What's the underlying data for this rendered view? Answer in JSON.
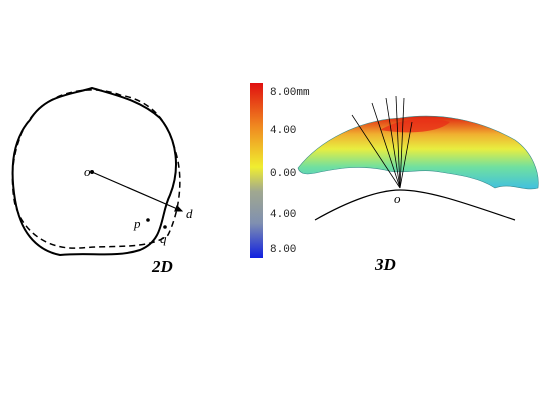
{
  "panel_2d": {
    "caption": "2D",
    "center_label": "o",
    "point_p": "p",
    "point_q": "q",
    "direction": "d"
  },
  "panel_3d": {
    "caption": "3D",
    "origin_label": "o",
    "colorbar": {
      "labels": [
        "8.00mm",
        "4.00",
        "0.00",
        "4.00",
        "8.00"
      ]
    }
  }
}
